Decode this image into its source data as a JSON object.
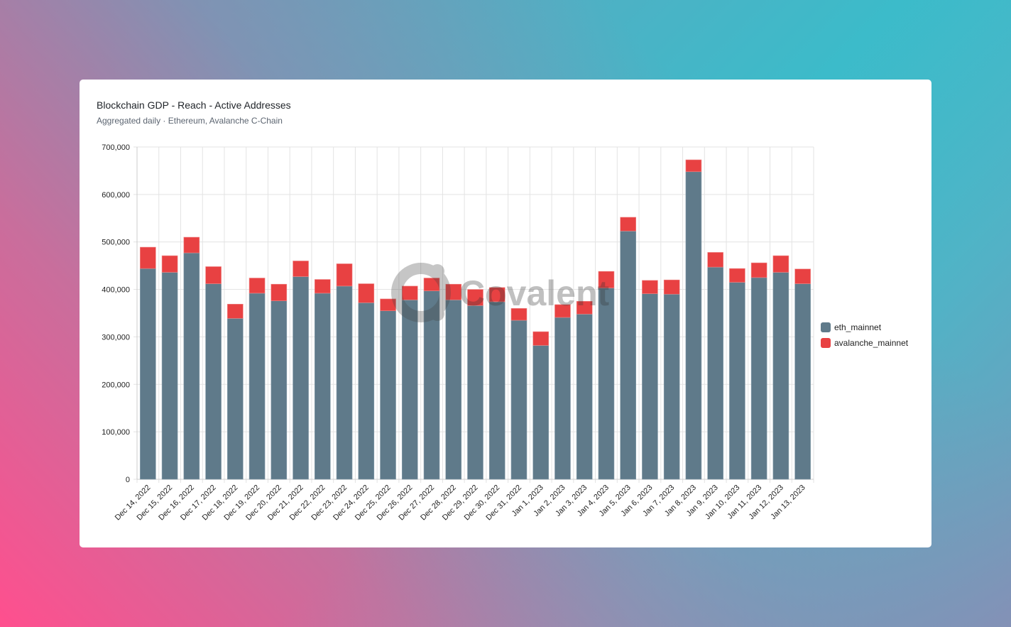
{
  "card": {
    "title": "Blockchain GDP - Reach - Active Addresses",
    "subtitle": "Aggregated daily · Ethereum, Avalanche C-Chain",
    "watermark": "Covalent"
  },
  "chart_data": {
    "type": "bar",
    "stacked": true,
    "title": "Blockchain GDP - Reach - Active Addresses",
    "xlabel": "",
    "ylabel": "",
    "ylim": [
      0,
      700000
    ],
    "yticks": [
      "0",
      "100,000",
      "200,000",
      "300,000",
      "400,000",
      "500,000",
      "600,000",
      "700,000"
    ],
    "grid": true,
    "legend": "right",
    "categories": [
      "Dec 14, 2022",
      "Dec 15, 2022",
      "Dec 16, 2022",
      "Dec 17, 2022",
      "Dec 18, 2022",
      "Dec 19, 2022",
      "Dec 20, 2022",
      "Dec 21, 2022",
      "Dec 22, 2022",
      "Dec 23, 2022",
      "Dec 24, 2022",
      "Dec 25, 2022",
      "Dec 26, 2022",
      "Dec 27, 2022",
      "Dec 28, 2022",
      "Dec 29, 2022",
      "Dec 30, 2022",
      "Dec 31, 2022",
      "Jan 1, 2023",
      "Jan 2, 2023",
      "Jan 3, 2023",
      "Jan 4, 2023",
      "Jan 5, 2023",
      "Jan 6, 2023",
      "Jan 7, 2023",
      "Jan 8, 2023",
      "Jan 9, 2023",
      "Jan 10, 2023",
      "Jan 11, 2023",
      "Jan 12, 2023",
      "Jan 13, 2023"
    ],
    "series": [
      {
        "name": "eth_mainnet",
        "color": "#5f7a8a",
        "values": [
          444000,
          436000,
          477000,
          412000,
          339000,
          392000,
          376000,
          427000,
          392000,
          407000,
          372000,
          355000,
          378000,
          397000,
          378000,
          366000,
          374000,
          335000,
          282000,
          341000,
          348000,
          403000,
          523000,
          391000,
          390000,
          648000,
          447000,
          415000,
          425000,
          436000,
          412000
        ]
      },
      {
        "name": "avalanche_mainnet",
        "color": "#e84142",
        "values": [
          45000,
          35000,
          33000,
          36000,
          30000,
          32000,
          35000,
          33000,
          29000,
          47000,
          40000,
          25000,
          29000,
          27000,
          33000,
          34000,
          30000,
          25000,
          29000,
          27000,
          27000,
          35000,
          29000,
          28000,
          30000,
          25000,
          31000,
          29000,
          31000,
          35000,
          31000
        ]
      }
    ]
  }
}
